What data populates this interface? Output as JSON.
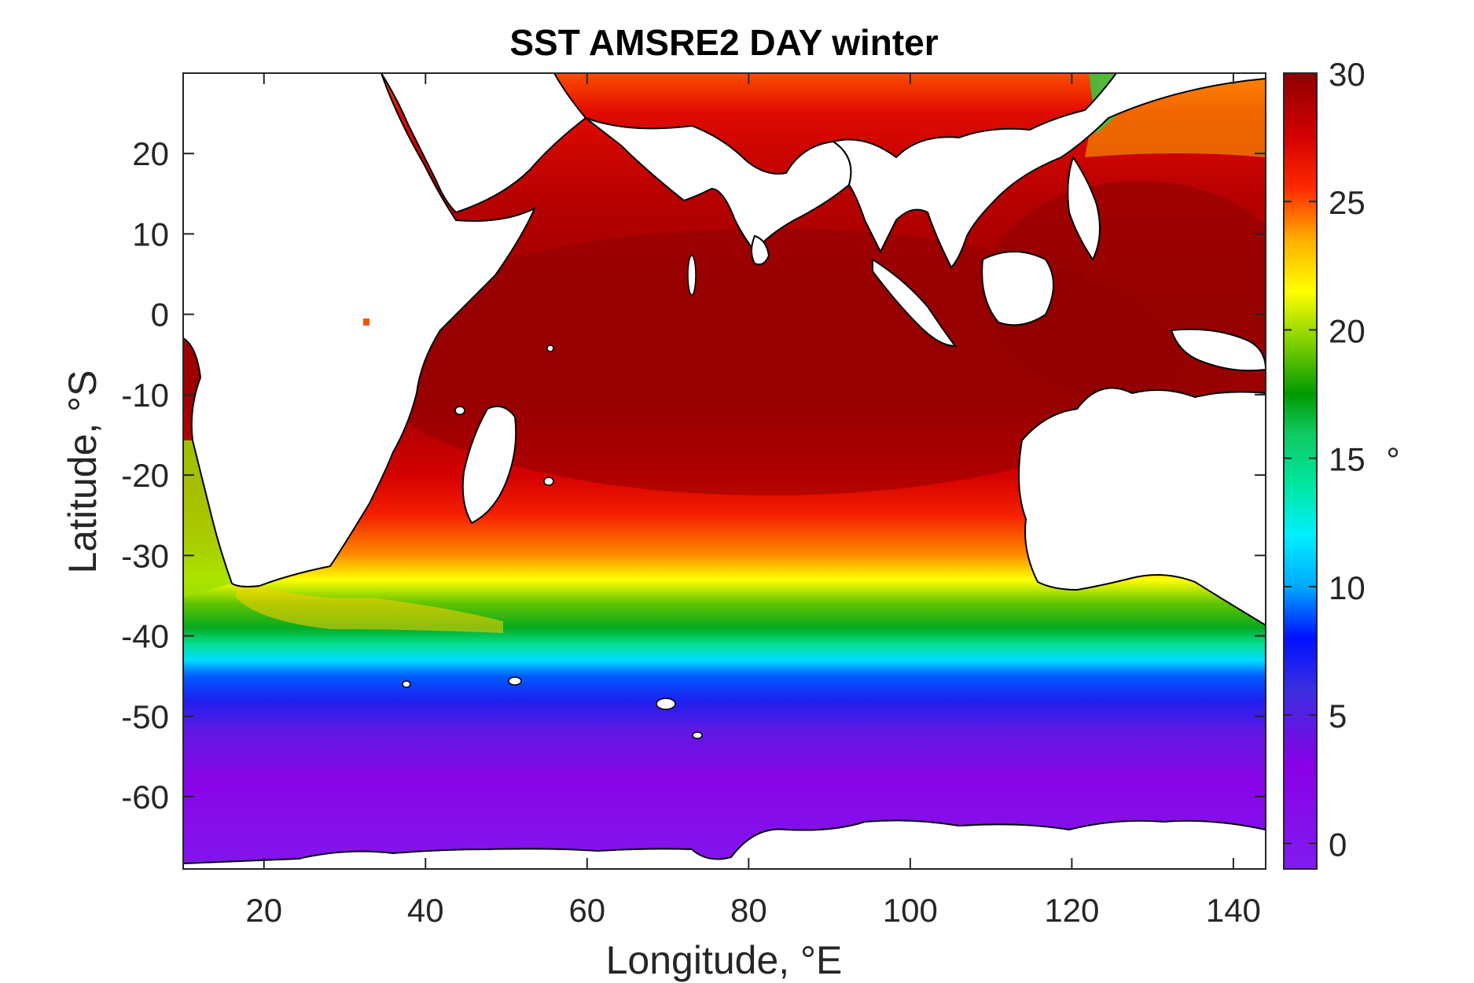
{
  "title": "SST AMSRE2 DAY winter",
  "colors": {
    "ocean_warm": "#9b0000",
    "ocean_red": "#e41a00",
    "land": "#ffffff",
    "coast": "#000000"
  },
  "chart_data": {
    "type": "heatmap",
    "title": "SST AMSRE2 DAY winter",
    "xlabel": "Longitude, °E",
    "ylabel": "Latitude, °S",
    "xlim": [
      10,
      144
    ],
    "ylim": [
      -69,
      30
    ],
    "x_ticks": [
      20,
      40,
      60,
      80,
      100,
      120,
      140
    ],
    "y_ticks": [
      20,
      10,
      0,
      -10,
      -20,
      -30,
      -40,
      -50,
      -60
    ],
    "x_tick_labels": [
      "20",
      "40",
      "60",
      "80",
      "100",
      "120",
      "140"
    ],
    "y_tick_labels": [
      "20",
      "10",
      "0",
      "-10",
      "-20",
      "-30",
      "-40",
      "-50",
      "-60"
    ],
    "colorbar": {
      "label": "°",
      "range": [
        -1,
        30
      ],
      "ticks": [
        0,
        5,
        10,
        15,
        20,
        25,
        30
      ],
      "tick_labels": [
        "0",
        "5",
        "10",
        "15",
        "20",
        "25",
        "30"
      ],
      "colormap": [
        {
          "value": -1,
          "color": "#7f1cf0"
        },
        {
          "value": 3,
          "color": "#8a00e6"
        },
        {
          "value": 6,
          "color": "#3a2fe0"
        },
        {
          "value": 8,
          "color": "#0010ff"
        },
        {
          "value": 10,
          "color": "#00a8ff"
        },
        {
          "value": 12,
          "color": "#00f0ff"
        },
        {
          "value": 14,
          "color": "#00e6a0"
        },
        {
          "value": 16,
          "color": "#10c860"
        },
        {
          "value": 17.5,
          "color": "#009a00"
        },
        {
          "value": 19.5,
          "color": "#7fd000"
        },
        {
          "value": 21.5,
          "color": "#ffff00"
        },
        {
          "value": 23.5,
          "color": "#ffb000"
        },
        {
          "value": 25.5,
          "color": "#ff2a00"
        },
        {
          "value": 27.5,
          "color": "#d40000"
        },
        {
          "value": 30,
          "color": "#8f0000"
        }
      ]
    },
    "sst_by_latitude": [
      {
        "lat": 30,
        "sst": 25
      },
      {
        "lat": 25,
        "sst": 27
      },
      {
        "lat": 15,
        "sst": 28.5
      },
      {
        "lat": 0,
        "sst": 29.5
      },
      {
        "lat": -10,
        "sst": 29.5
      },
      {
        "lat": -20,
        "sst": 27.5
      },
      {
        "lat": -25,
        "sst": 26
      },
      {
        "lat": -30,
        "sst": 24
      },
      {
        "lat": -33,
        "sst": 21.5
      },
      {
        "lat": -36,
        "sst": 19
      },
      {
        "lat": -39,
        "sst": 17
      },
      {
        "lat": -41,
        "sst": 14.5
      },
      {
        "lat": -43,
        "sst": 11.5
      },
      {
        "lat": -45,
        "sst": 9
      },
      {
        "lat": -48,
        "sst": 7
      },
      {
        "lat": -52,
        "sst": 4.5
      },
      {
        "lat": -58,
        "sst": 2.5
      },
      {
        "lat": -64,
        "sst": 1
      },
      {
        "lat": -69,
        "sst": 0
      }
    ]
  }
}
